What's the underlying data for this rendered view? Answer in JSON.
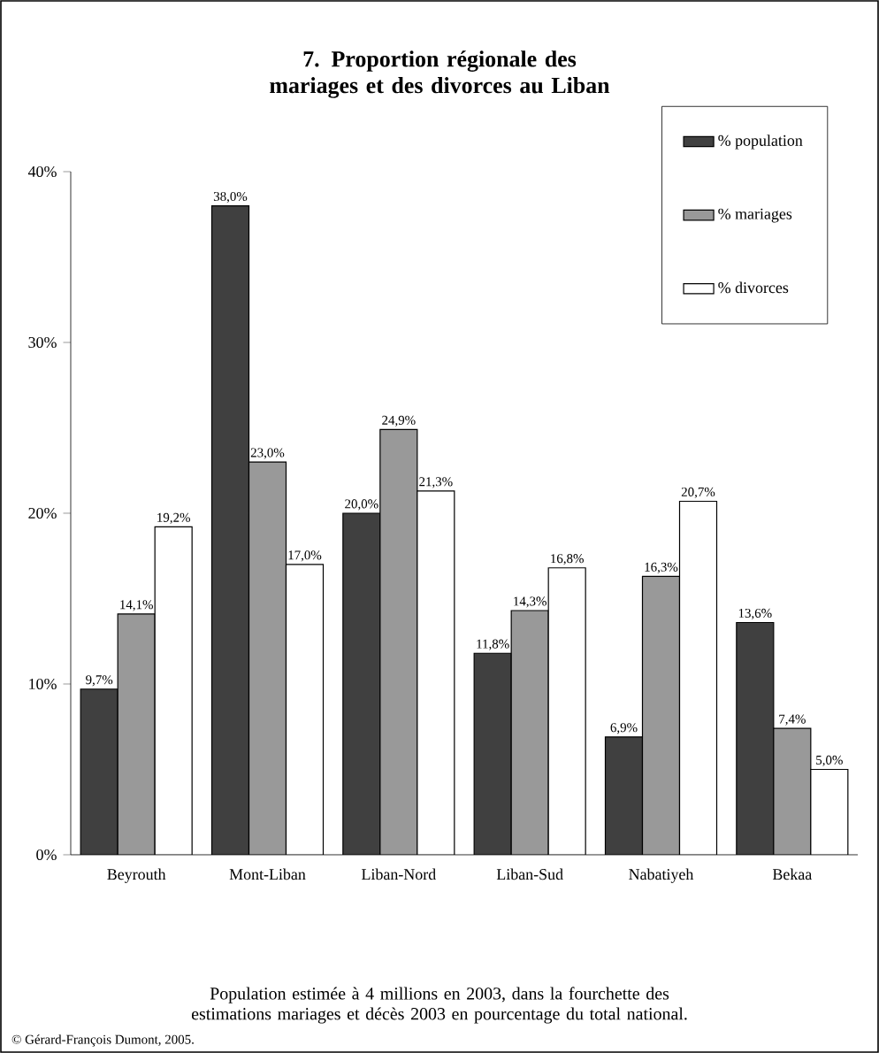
{
  "chart_data": {
    "type": "bar",
    "title": "7. Proportion régionale des mariages et des divorces au Liban",
    "categories": [
      "Beyrouth",
      "Mont-Liban",
      "Liban-Nord",
      "Liban-Sud",
      "Nabatiyeh",
      "Bekaa"
    ],
    "series": [
      {
        "name": "% population",
        "color": "#404040",
        "values": [
          9.7,
          38.0,
          20.0,
          11.8,
          6.9,
          13.6
        ],
        "value_labels": [
          "9,7%",
          "38,0%",
          "20,0%",
          "11,8%",
          "6,9%",
          "13,6%"
        ]
      },
      {
        "name": "% mariages",
        "color": "#999999",
        "values": [
          14.1,
          23.0,
          24.9,
          14.3,
          16.3,
          7.4
        ],
        "value_labels": [
          "14,1%",
          "23,0%",
          "24,9%",
          "14,3%",
          "16,3%",
          "7,4%"
        ]
      },
      {
        "name": "% divorces",
        "color": "#ffffff",
        "values": [
          19.2,
          17.0,
          21.3,
          16.8,
          20.7,
          5.0
        ],
        "value_labels": [
          "19,2%",
          "17,0%",
          "21,3%",
          "16,8%",
          "20,7%",
          "5,0%"
        ]
      }
    ],
    "ylim": [
      0,
      40
    ],
    "yticks": [
      {
        "value": 0,
        "label": "0%"
      },
      {
        "value": 10,
        "label": "10%"
      },
      {
        "value": 20,
        "label": "20%"
      },
      {
        "value": 30,
        "label": "30%"
      },
      {
        "value": 40,
        "label": "40%"
      }
    ],
    "legend": "top right",
    "annotations": [
      "Population estimée à 4 millions en 2003, dans la fourchette des estimations mariages et décès 2003 en pourcentage du total national.",
      "© Gérard-François Dumont, 2005."
    ]
  }
}
